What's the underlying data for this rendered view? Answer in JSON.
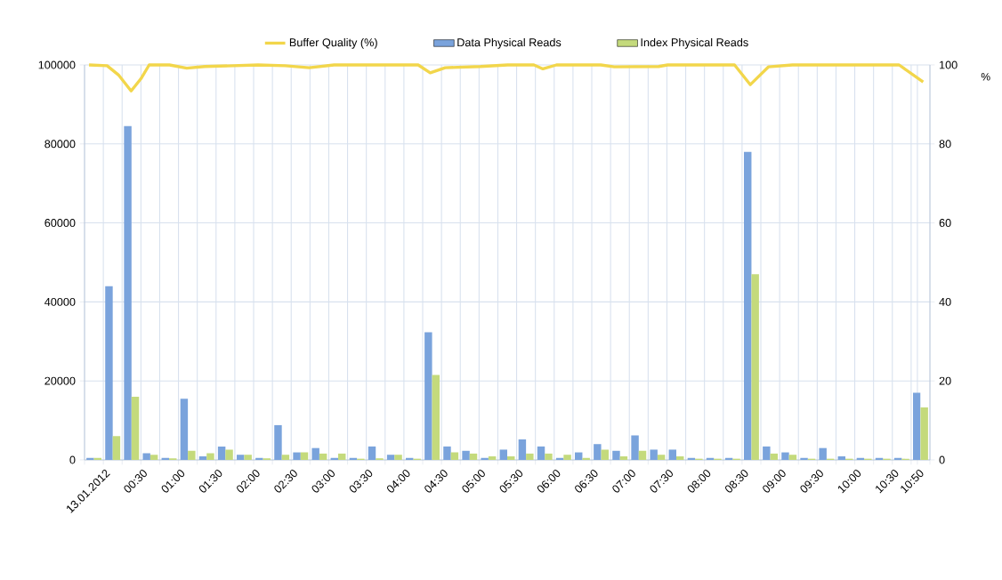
{
  "chart_data": {
    "type": "bar",
    "legend": "top",
    "grid": true,
    "y2label": "%",
    "x": [
      -0.125,
      0.125,
      0.375,
      0.625,
      0.875,
      1.125,
      1.375,
      1.625,
      1.875,
      2.125,
      2.375,
      2.625,
      2.875,
      3.125,
      3.375,
      3.625,
      3.875,
      4.125,
      4.375,
      4.625,
      4.875,
      5.125,
      5.375,
      5.625,
      5.875,
      6.125,
      6.375,
      6.625,
      6.875,
      7.125,
      7.375,
      7.625,
      7.875,
      8.125,
      8.375,
      8.625,
      8.875,
      9.125,
      9.375,
      9.625,
      9.875,
      10.125,
      10.375,
      10.625,
      10.875
    ],
    "xlim": [
      -0.25,
      11.0
    ],
    "xticks": [
      {
        "value": -0.25,
        "label": null
      },
      {
        "value": 0,
        "label": "13.01.2012"
      },
      {
        "value": 0.25,
        "label": null
      },
      {
        "value": 0.5,
        "label": "00:30"
      },
      {
        "value": 0.75,
        "label": null
      },
      {
        "value": 1,
        "label": "01:00"
      },
      {
        "value": 1.25,
        "label": null
      },
      {
        "value": 1.5,
        "label": "01:30"
      },
      {
        "value": 1.75,
        "label": null
      },
      {
        "value": 2,
        "label": "02:00"
      },
      {
        "value": 2.25,
        "label": null
      },
      {
        "value": 2.5,
        "label": "02:30"
      },
      {
        "value": 2.75,
        "label": null
      },
      {
        "value": 3,
        "label": "03:00"
      },
      {
        "value": 3.25,
        "label": null
      },
      {
        "value": 3.5,
        "label": "03:30"
      },
      {
        "value": 3.75,
        "label": null
      },
      {
        "value": 4,
        "label": "04:00"
      },
      {
        "value": 4.25,
        "label": null
      },
      {
        "value": 4.5,
        "label": "04:30"
      },
      {
        "value": 4.75,
        "label": null
      },
      {
        "value": 5,
        "label": "05:00"
      },
      {
        "value": 5.25,
        "label": null
      },
      {
        "value": 5.5,
        "label": "05:30"
      },
      {
        "value": 5.75,
        "label": null
      },
      {
        "value": 6,
        "label": "06:00"
      },
      {
        "value": 6.25,
        "label": null
      },
      {
        "value": 6.5,
        "label": "06:30"
      },
      {
        "value": 6.75,
        "label": null
      },
      {
        "value": 7,
        "label": "07:00"
      },
      {
        "value": 7.25,
        "label": null
      },
      {
        "value": 7.5,
        "label": "07:30"
      },
      {
        "value": 7.75,
        "label": null
      },
      {
        "value": 8,
        "label": "08:00"
      },
      {
        "value": 8.25,
        "label": null
      },
      {
        "value": 8.5,
        "label": "08:30"
      },
      {
        "value": 8.75,
        "label": null
      },
      {
        "value": 9,
        "label": "09:00"
      },
      {
        "value": 9.25,
        "label": null
      },
      {
        "value": 9.5,
        "label": "09:30"
      },
      {
        "value": 9.75,
        "label": null
      },
      {
        "value": 10,
        "label": "10:00"
      },
      {
        "value": 10.25,
        "label": null
      },
      {
        "value": 10.5,
        "label": "10:30"
      },
      {
        "value": 10.75,
        "label": null
      },
      {
        "value": 10.8333,
        "label": "10:50"
      },
      {
        "value": 11.0,
        "label": null
      }
    ],
    "ylim": [
      0,
      100000
    ],
    "yticks": [
      0,
      20000,
      40000,
      60000,
      80000,
      100000
    ],
    "y2lim": [
      0,
      100
    ],
    "y2ticks": [
      0,
      20,
      40,
      60,
      80,
      100
    ],
    "series": [
      {
        "name": "Buffer Quality (%)",
        "type": "line",
        "axis": "y2",
        "color": "#f2d64b",
        "x": [
          -0.19,
          0.05,
          0.2,
          0.37,
          0.5,
          0.61,
          0.88,
          1.11,
          1.35,
          2.06,
          2.42,
          2.74,
          3.07,
          4.19,
          4.35,
          4.55,
          5.02,
          5.38,
          5.73,
          5.85,
          6.03,
          6.62,
          6.8,
          7.39,
          7.51,
          8.4,
          8.61,
          8.85,
          9.17,
          10.59,
          10.91
        ],
        "values": [
          100,
          99.8,
          97.5,
          93.4,
          96.5,
          100,
          100,
          99.2,
          99.6,
          100,
          99.8,
          99.3,
          100,
          100,
          98.0,
          99.3,
          99.6,
          100,
          100,
          99.0,
          100,
          100,
          99.5,
          99.6,
          100,
          100,
          95.0,
          99.5,
          100,
          100,
          95.7
        ]
      },
      {
        "name": "Data Physical Reads",
        "color": "#7aa3dc",
        "values": [
          500,
          44000,
          84500,
          1700,
          500,
          15500,
          900,
          3400,
          1300,
          500,
          8800,
          1900,
          3000,
          500,
          500,
          3400,
          1300,
          500,
          32300,
          3400,
          2300,
          500,
          2600,
          5200,
          3400,
          500,
          1900,
          4000,
          2300,
          6200,
          2600,
          2600,
          500,
          500,
          500,
          78000,
          3400,
          1900,
          500,
          3000,
          900,
          500,
          500,
          500,
          17000
        ]
      },
      {
        "name": "Index Physical Reads",
        "color": "#c4da7c",
        "values": [
          500,
          6000,
          16000,
          1300,
          400,
          2300,
          1700,
          2600,
          1300,
          400,
          1300,
          1900,
          1600,
          1600,
          300,
          400,
          1300,
          300,
          21500,
          1900,
          1600,
          900,
          900,
          1600,
          1600,
          1300,
          500,
          2600,
          900,
          2300,
          1300,
          900,
          300,
          300,
          300,
          47000,
          1600,
          1300,
          300,
          300,
          300,
          300,
          300,
          300,
          13300
        ]
      }
    ]
  }
}
